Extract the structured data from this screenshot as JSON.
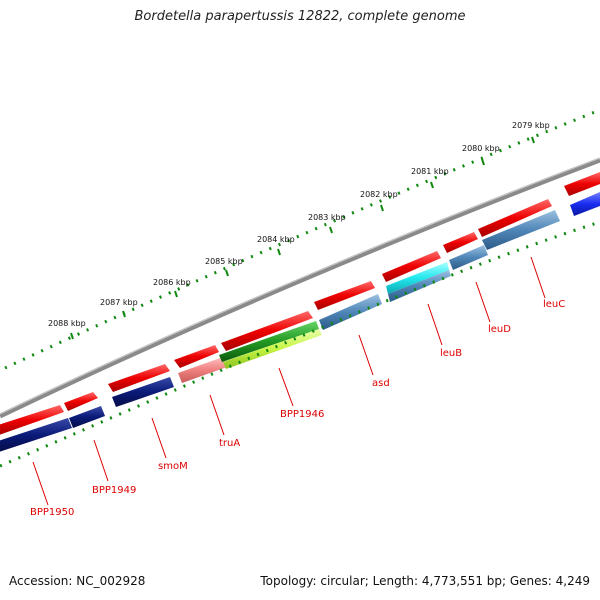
{
  "title": "Bordetella parapertussis 12822, complete genome",
  "footer": {
    "accession": "Accession: NC_002928",
    "topology": "Topology: circular; Length: 4,773,551 bp; Genes: 4,249"
  },
  "scale_ticks": [
    "2079 kbp",
    "2080 kbp",
    "2081 kbp",
    "2082 kbp",
    "2083 kbp",
    "2084 kbp",
    "2085 kbp",
    "2086 kbp",
    "2087 kbp",
    "2088 kbp"
  ],
  "gene_labels": [
    "BPP1950",
    "BPP1949",
    "smoM",
    "truA",
    "BPP1946",
    "asd",
    "leuB",
    "leuD",
    "leuC"
  ],
  "colors": {
    "forward_gene": "#ee0000",
    "cds_navy": "#0a1a78",
    "cds_steel": "#4f86b8",
    "cds_green": "#22aa22",
    "cds_lime": "#c6f542",
    "cds_pink": "#f08080",
    "cds_cyan": "#22e8ee",
    "cds_blue": "#1a2cf0",
    "backbone": "#7a7a7a",
    "ticks": "#118811",
    "label_text": "#dd0000"
  }
}
